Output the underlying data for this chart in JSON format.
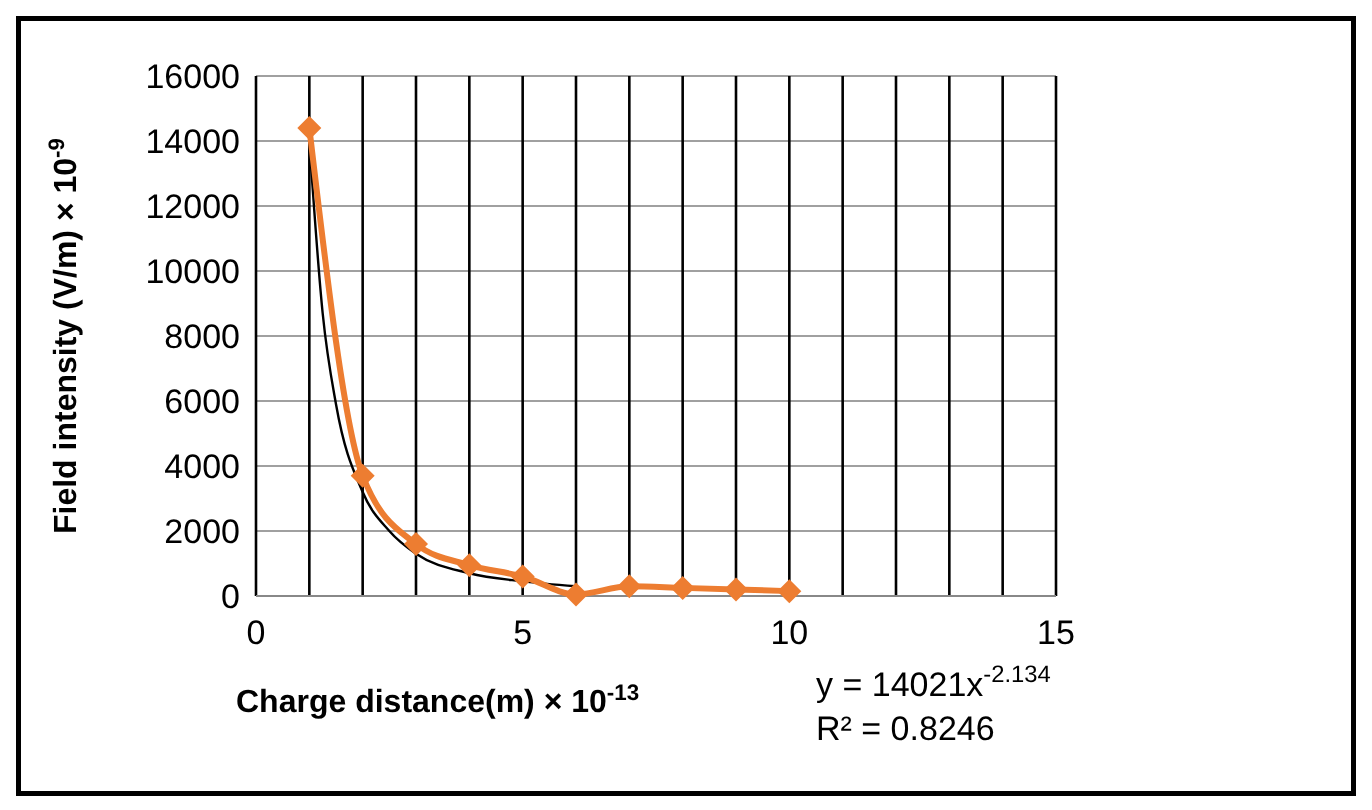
{
  "chart_data": {
    "type": "line",
    "xlabel": "Charge distance(m) × 10$^{-13}$",
    "ylabel": "Field intensity (V/m) × 10$^{-9}$",
    "xlim": [
      0,
      15
    ],
    "xticks": [
      0,
      {
        "value": 1,
        "label": null
      },
      {
        "value": 2,
        "label": null
      },
      {
        "value": 3,
        "label": null
      },
      {
        "value": 4,
        "label": null
      },
      5,
      {
        "value": 6,
        "label": null
      },
      {
        "value": 7,
        "label": null
      },
      {
        "value": 8,
        "label": null
      },
      {
        "value": 9,
        "label": null
      },
      10,
      {
        "value": 11,
        "label": null
      },
      {
        "value": 12,
        "label": null
      },
      {
        "value": 13,
        "label": null
      },
      {
        "value": 14,
        "label": null
      },
      15
    ],
    "ylim": [
      0,
      16000
    ],
    "yticks": [
      0,
      2000,
      4000,
      6000,
      8000,
      10000,
      12000,
      14000,
      16000
    ],
    "grid": true,
    "series": [
      {
        "color": "#ed7d31",
        "marker": "diamond",
        "x": [
          1,
          2,
          3,
          4,
          5,
          6,
          7,
          8,
          9,
          10
        ],
        "values": [
          14400,
          3700,
          1600,
          950,
          600,
          50,
          300,
          250,
          200,
          150
        ]
      },
      {
        "type": "line",
        "color": "#000000",
        "marker": "none",
        "x": [
          1,
          1.25,
          1.5,
          2,
          2.5,
          3,
          4,
          5,
          6
        ],
        "values": [
          14000,
          8700,
          5900,
          3200,
          2000,
          1300,
          700,
          450,
          300
        ]
      }
    ],
    "annotations": [
      "y = 14021x$^{-2.134}$",
      "R² = 0.8246"
    ]
  }
}
